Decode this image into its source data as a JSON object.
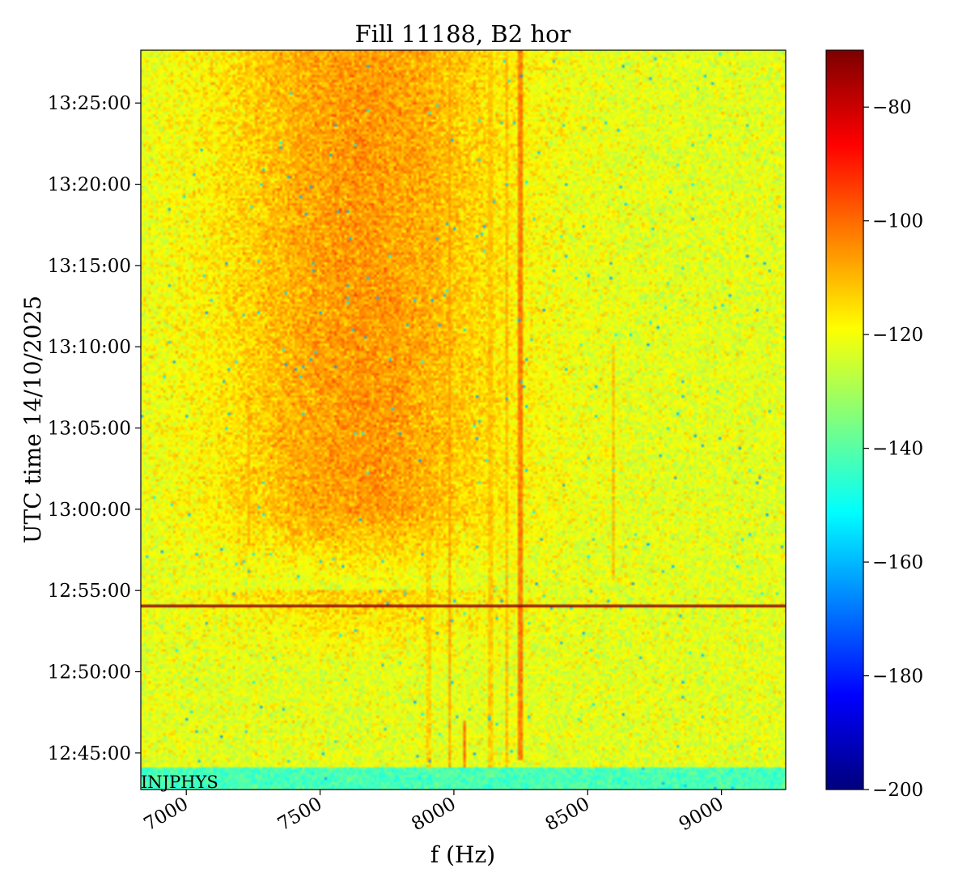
{
  "chart_data": {
    "type": "heatmap",
    "title": "Fill 11188, B2 hor",
    "xlabel": "f (Hz)",
    "ylabel": "UTC time 14/10/2025",
    "x_ticks": [
      7000,
      7500,
      8000,
      8500,
      9000
    ],
    "x_tick_labels": [
      "7000",
      "7500",
      "8000",
      "8500",
      "9000"
    ],
    "xlim": [
      6830,
      9240
    ],
    "y_ticks": [
      "12:45:00",
      "12:50:00",
      "12:55:00",
      "13:00:00",
      "13:05:00",
      "13:10:00",
      "13:15:00",
      "13:20:00",
      "13:25:00"
    ],
    "ylim": [
      "12:42:45",
      "13:28:15"
    ],
    "colorbar": {
      "colormap": "jet",
      "range": [
        -200,
        -70
      ],
      "ticks": [
        -80,
        -100,
        -120,
        -140,
        -160,
        -180,
        -200
      ],
      "tick_labels": [
        "−80",
        "−100",
        "−120",
        "−140",
        "−160",
        "−180",
        "−200"
      ]
    },
    "features": {
      "background_level": -122,
      "broadband_hump": {
        "f_center": 7650,
        "f_width": 520,
        "time_from": "12:55:00",
        "time_to": "13:28:15",
        "peak_level": -104
      },
      "spectral_lines": [
        {
          "f": 7235,
          "time_from": "12:58:00",
          "time_to": "13:07:00",
          "level": -110
        },
        {
          "f": 7905,
          "time_from": "12:42:45",
          "time_to": "13:28:15",
          "level": -113
        },
        {
          "f": 7985,
          "time_from": "12:42:45",
          "time_to": "13:28:15",
          "level": -108
        },
        {
          "f": 8040,
          "time_from": "12:44:00",
          "time_to": "12:47:00",
          "level": -101
        },
        {
          "f": 8135,
          "time_from": "12:42:45",
          "time_to": "13:28:15",
          "level": -112
        },
        {
          "f": 8195,
          "time_from": "12:42:45",
          "time_to": "13:28:15",
          "level": -110
        },
        {
          "f": 8250,
          "time_from": "12:44:30",
          "time_to": "13:28:15",
          "level": -102
        },
        {
          "f": 8595,
          "time_from": "12:55:30",
          "time_to": "13:10:00",
          "level": -110
        }
      ],
      "horizontal_line": {
        "time": "12:54:05",
        "level": -72
      },
      "low_band": {
        "time_from": "12:42:45",
        "time_to": "12:44:05",
        "level": -142
      }
    },
    "annotation": "INJPHYS"
  }
}
